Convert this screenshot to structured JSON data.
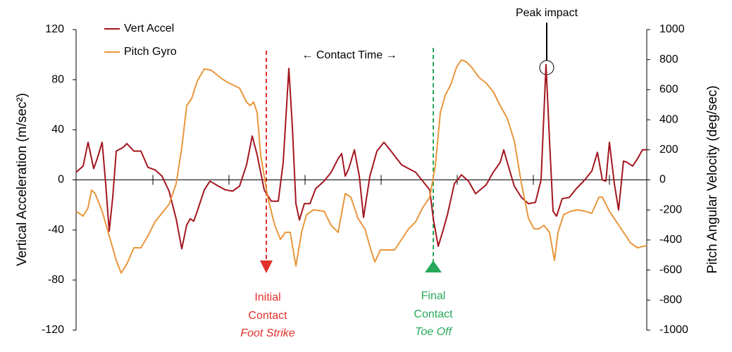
{
  "chart_data": {
    "type": "line",
    "y_label": "Vertical Acceleration (m/sec²)",
    "y2_label": "Pitch Angular Velocity (deg/sec)",
    "xlim": [
      0,
      810
    ],
    "ylim": [
      -120,
      120
    ],
    "yticks": [
      120,
      80,
      40,
      0,
      -40,
      -80,
      -120
    ],
    "y2lim": [
      -1000,
      1000
    ],
    "y2ticks": [
      1000,
      800,
      600,
      400,
      200,
      0,
      -200,
      -400,
      -600,
      -800,
      -1000
    ],
    "legend": "top-left",
    "annotations": [
      "Peak impact",
      "←  Contact Time  →",
      "Initial",
      "Contact",
      "Foot Strike",
      "Final",
      "Contact",
      "Toe Off"
    ],
    "series": [
      {
        "name": "Vert Accel",
        "color": "#a3161f",
        "x": [
          0,
          10,
          17,
          25,
          30,
          37,
          42,
          47,
          52,
          57,
          67,
          72,
          82,
          92,
          102,
          112,
          122,
          132,
          142,
          150,
          157,
          162,
          167,
          172,
          182,
          190,
          202,
          212,
          222,
          232,
          242,
          250,
          257,
          267,
          277,
          287,
          294,
          302,
          307,
          312,
          317,
          324,
          332,
          340,
          352,
          362,
          372,
          377,
          382,
          387,
          395,
          402,
          408,
          417,
          427,
          437,
          447,
          462,
          472,
          482,
          492,
          502,
          507,
          514,
          520,
          527,
          537,
          547,
          557,
          567,
          582,
          592,
          602,
          607,
          612,
          622,
          632,
          642,
          652,
          660,
          667,
          672,
          677,
          682,
          690,
          700,
          710,
          722,
          732,
          740,
          747,
          752,
          757,
          764,
          770,
          777,
          782,
          790,
          797,
          804,
          810
        ],
        "values": [
          6,
          11,
          30,
          9,
          17,
          30,
          -3,
          -41,
          -14,
          23,
          26,
          29,
          23,
          23,
          10,
          8,
          3,
          -9,
          -31,
          -55,
          -36,
          -31,
          -33,
          -25,
          -8,
          -1,
          -5,
          -8,
          -9,
          -5,
          12,
          35,
          20,
          -8,
          -17,
          -17,
          14,
          89,
          42,
          -19,
          -32,
          -19,
          -19,
          -7,
          -1,
          6,
          17,
          21,
          3,
          9,
          24,
          3,
          -30,
          3,
          23,
          30,
          23,
          12,
          9,
          6,
          -1,
          -8,
          -31,
          -53,
          -42,
          -28,
          -3,
          4,
          -1,
          -11,
          -4,
          6,
          14,
          24,
          14,
          -5,
          -14,
          -19,
          -18,
          0,
          92,
          31,
          -25,
          -29,
          -15,
          -14,
          -7,
          0,
          7,
          22,
          0,
          -1,
          30,
          -3,
          -24,
          15,
          14,
          11,
          17,
          24,
          24
        ]
      },
      {
        "name": "Pitch Gyro",
        "color": "#e8963c",
        "axis": "y2",
        "x": [
          0,
          10,
          17,
          22,
          27,
          37,
          47,
          57,
          64,
          72,
          82,
          92,
          102,
          112,
          132,
          142,
          150,
          157,
          164,
          172,
          182,
          192,
          207,
          217,
          232,
          242,
          247,
          252,
          257,
          262,
          272,
          282,
          290,
          297,
          304,
          312,
          320,
          327,
          337,
          352,
          362,
          372,
          382,
          390,
          400,
          410,
          417,
          424,
          432,
          442,
          452,
          462,
          472,
          482,
          492,
          502,
          510,
          517,
          524,
          532,
          540,
          547,
          554,
          562,
          572,
          582,
          592,
          602,
          612,
          622,
          632,
          642,
          650,
          657,
          664,
          672,
          679,
          684,
          692,
          702,
          712,
          722,
          732,
          742,
          747,
          757,
          767,
          777,
          787,
          797,
          804,
          810
        ],
        "values": [
          -209,
          -241,
          -185,
          -68,
          -91,
          -209,
          -372,
          -536,
          -620,
          -560,
          -452,
          -452,
          -372,
          -279,
          -162,
          -26,
          213,
          494,
          541,
          658,
          738,
          729,
          672,
          644,
          611,
          518,
          494,
          518,
          447,
          166,
          -115,
          -302,
          -396,
          -349,
          -349,
          -574,
          -349,
          -232,
          -199,
          -209,
          -302,
          -349,
          -91,
          -115,
          -255,
          -326,
          -443,
          -546,
          -466,
          -466,
          -466,
          -396,
          -326,
          -279,
          -185,
          -115,
          96,
          447,
          564,
          635,
          751,
          798,
          784,
          746,
          681,
          644,
          588,
          494,
          410,
          260,
          -21,
          -255,
          -326,
          -326,
          -302,
          -349,
          -536,
          -349,
          -232,
          -209,
          -199,
          -209,
          -223,
          -115,
          -115,
          -209,
          -279,
          -349,
          -419,
          -452,
          -443,
          -438
        ]
      }
    ]
  }
}
